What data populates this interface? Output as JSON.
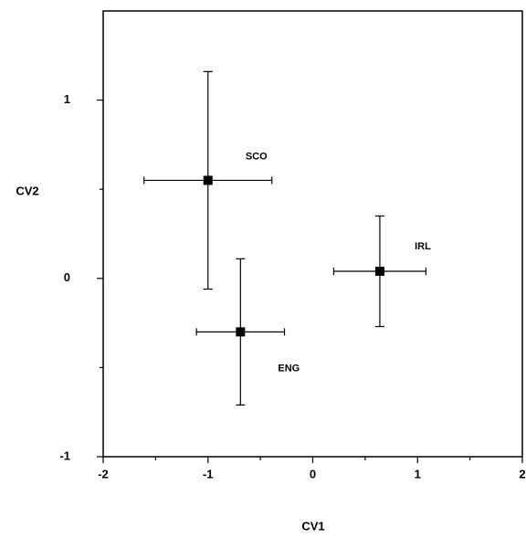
{
  "chart_data": {
    "type": "scatter",
    "x_label": "CV1",
    "y_label": "CV2",
    "xlim": [
      -2,
      2
    ],
    "ylim": [
      -1,
      1.5
    ],
    "xticks": [
      -2,
      -1,
      0,
      1,
      2
    ],
    "yticks": [
      -1,
      0,
      1
    ],
    "xminorticks": [
      -1.5,
      -0.5,
      0.5,
      1.5
    ],
    "yminorticks": [
      -0.5,
      0.5
    ],
    "color": "#000000",
    "labels": [
      "SCO",
      "ENG",
      "IRL"
    ],
    "x": [
      -1.0,
      -0.69,
      0.64
    ],
    "y": [
      0.55,
      -0.3,
      0.04
    ],
    "xerr": [
      0.61,
      0.42,
      0.44
    ],
    "yerr": [
      0.61,
      0.41,
      0.31
    ]
  }
}
